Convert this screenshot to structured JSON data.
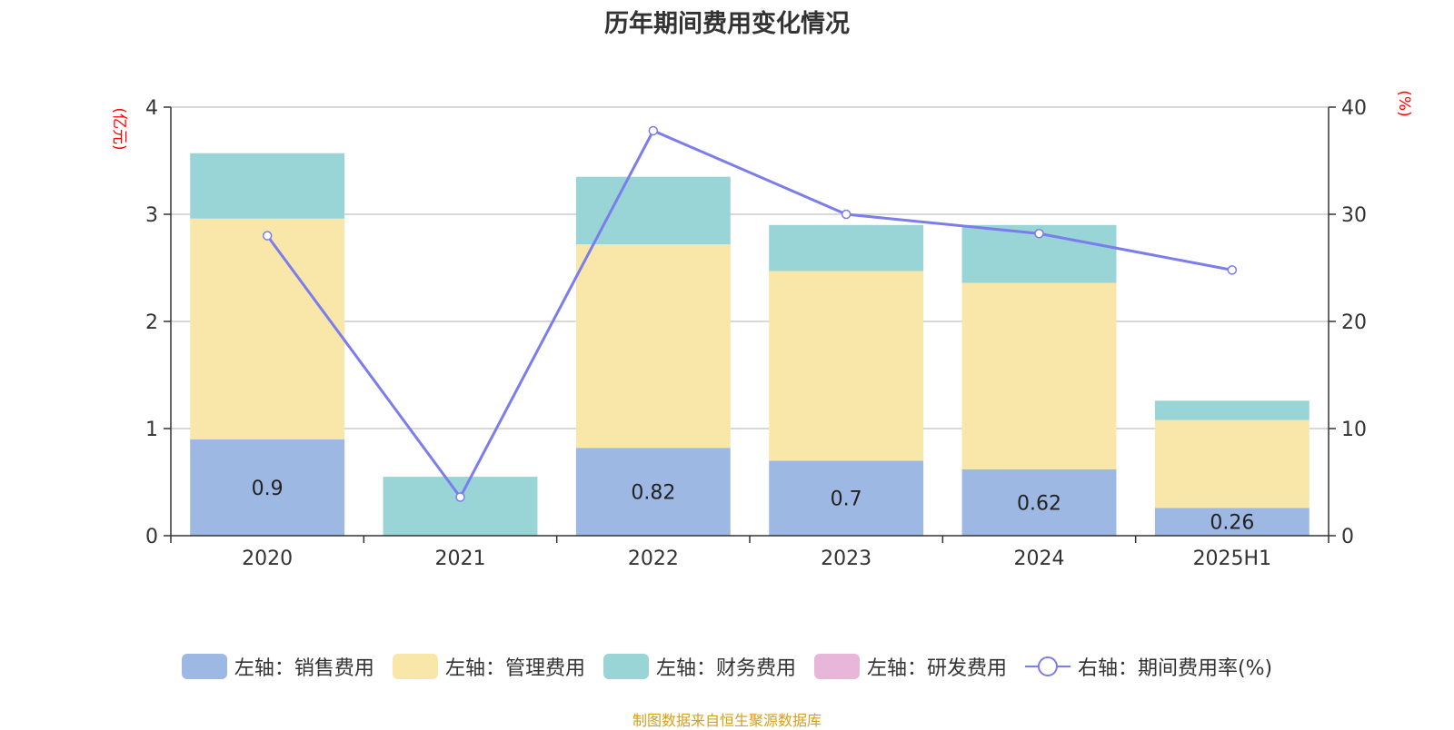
{
  "chart_data": {
    "type": "bar",
    "title": "历年期间费用变化情况",
    "categories": [
      "2020",
      "2021",
      "2022",
      "2023",
      "2024",
      "2025H1"
    ],
    "left_axis": {
      "label": "(亿元)",
      "range": [
        0,
        4
      ],
      "ticks": [
        "0",
        "1",
        "2",
        "3",
        "4"
      ],
      "ticks_values": [
        0,
        1,
        2,
        3,
        4
      ]
    },
    "right_axis": {
      "label": "(%)",
      "range": [
        0,
        40
      ],
      "ticks": [
        "0",
        "10",
        "20",
        "30",
        "40"
      ],
      "ticks_values": [
        0,
        10,
        20,
        30,
        40
      ]
    },
    "series": [
      {
        "name": "左轴：销售费用",
        "axis": "left",
        "type": "bar",
        "color": "#9db8e2",
        "values": [
          0.9,
          0,
          0.82,
          0.7,
          0.62,
          0.26
        ],
        "labels": [
          "0.9",
          "",
          "0.82",
          "0.7",
          "0.62",
          "0.26"
        ]
      },
      {
        "name": "左轴：管理费用",
        "axis": "left",
        "type": "bar",
        "color": "#f8e7a8",
        "values": [
          2.06,
          0,
          1.9,
          1.77,
          1.74,
          0.82
        ],
        "labels": [
          "",
          "",
          "",
          "",
          "",
          ""
        ]
      },
      {
        "name": "左轴：财务费用",
        "axis": "left",
        "type": "bar",
        "color": "#99d4d6",
        "values": [
          0.61,
          0.55,
          0.63,
          0.43,
          0.54,
          0.18
        ],
        "labels": [
          "",
          "",
          "",
          "",
          "",
          ""
        ]
      },
      {
        "name": "左轴：研发费用",
        "axis": "left",
        "type": "bar",
        "color": "#e7b6d8",
        "values": [
          0,
          0,
          0,
          0,
          0,
          0
        ],
        "labels": [
          "",
          "",
          "",
          "",
          "",
          ""
        ]
      },
      {
        "name": "右轴：期间费用率(%)",
        "axis": "right",
        "type": "line",
        "color": "#7b7ded",
        "values": [
          28.0,
          3.6,
          37.8,
          30.0,
          28.2,
          24.8
        ]
      }
    ],
    "grid": true,
    "legend_position": "bottom"
  },
  "source": "制图数据来自恒生聚源数据库",
  "legend_labels": [
    "左轴：销售费用",
    "左轴：管理费用",
    "左轴：财务费用",
    "左轴：研发费用",
    "右轴：期间费用率(%)"
  ]
}
